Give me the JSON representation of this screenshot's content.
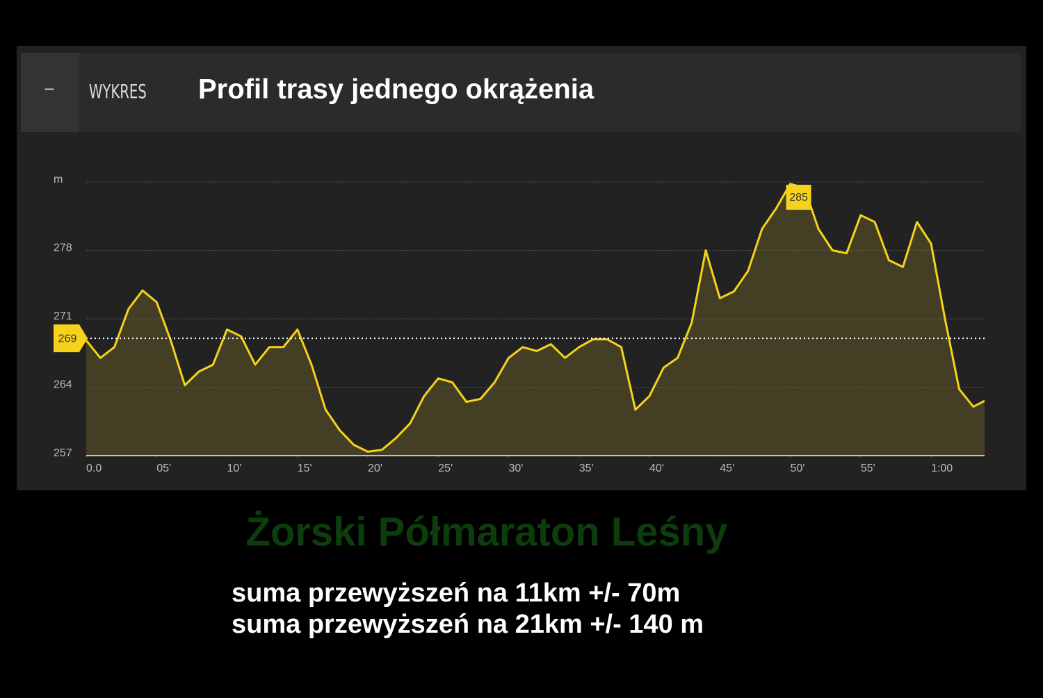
{
  "header": {
    "button": "−",
    "tab": "WYKRES"
  },
  "chart_data": {
    "type": "line",
    "title": "Profil trasy jednego okrążenia",
    "x": [
      0,
      1,
      2,
      3,
      4,
      5,
      6,
      7,
      8,
      9,
      10,
      11,
      12,
      13,
      14,
      15,
      16,
      17,
      18,
      19,
      20,
      21,
      22,
      23,
      24,
      25,
      26,
      27,
      28,
      29,
      30,
      31,
      32,
      33,
      34,
      35,
      36,
      37,
      38,
      39,
      40,
      41,
      42,
      43,
      44,
      45,
      46,
      47,
      48,
      49,
      50,
      51,
      52,
      53,
      54,
      55,
      56,
      57,
      58,
      59,
      60,
      61,
      62,
      63,
      63.8
    ],
    "series": [
      {
        "name": "elevation",
        "color": "#f5d31c",
        "values": [
          268.8,
          267,
          268.1,
          272,
          273.9,
          272.7,
          268.8,
          264.2,
          265.6,
          266.3,
          269.9,
          269.2,
          266.3,
          268.1,
          268.1,
          269.9,
          266.3,
          261.7,
          259.6,
          258.1,
          257.4,
          257.6,
          258.8,
          260.3,
          263.1,
          264.9,
          264.5,
          262.5,
          262.8,
          264.5,
          267,
          268.1,
          267.7,
          268.4,
          267,
          268.1,
          268.9,
          268.9,
          268.1,
          261.7,
          263.1,
          266,
          267,
          270.6,
          278,
          273.1,
          273.8,
          275.9,
          280.2,
          282.3,
          284.8,
          284.4,
          280.2,
          278,
          277.7,
          281.6,
          280.9,
          277,
          276.3,
          280.9,
          278.7,
          270.9,
          263.8,
          262,
          262.6
        ]
      }
    ],
    "xlim": [
      0,
      63.8
    ],
    "xticks": [
      {
        "value": 0,
        "label": "0.0"
      },
      {
        "value": 5,
        "label": "05'"
      },
      {
        "value": 10,
        "label": "10'"
      },
      {
        "value": 15,
        "label": "15'"
      },
      {
        "value": 20,
        "label": "20'"
      },
      {
        "value": 25,
        "label": "25'"
      },
      {
        "value": 30,
        "label": "30'"
      },
      {
        "value": 35,
        "label": "35'"
      },
      {
        "value": 40,
        "label": "40'"
      },
      {
        "value": 45,
        "label": "45'"
      },
      {
        "value": 50,
        "label": "50'"
      },
      {
        "value": 55,
        "label": "55'"
      },
      {
        "value": 60,
        "label": "1:00"
      }
    ],
    "ylim": [
      257,
      285
    ],
    "yticks": [
      257,
      264,
      271,
      278,
      {
        "value": 285,
        "label": "m"
      }
    ],
    "grid": true,
    "reference_line": 269,
    "peak": {
      "x": 50,
      "value": 285
    }
  },
  "footer": {
    "title": "Żorski Półmaraton Leśny",
    "lines": [
      "suma przewyższeń na 11km +/- 70m",
      "suma przewyższeń na 21km +/- 140 m"
    ]
  }
}
